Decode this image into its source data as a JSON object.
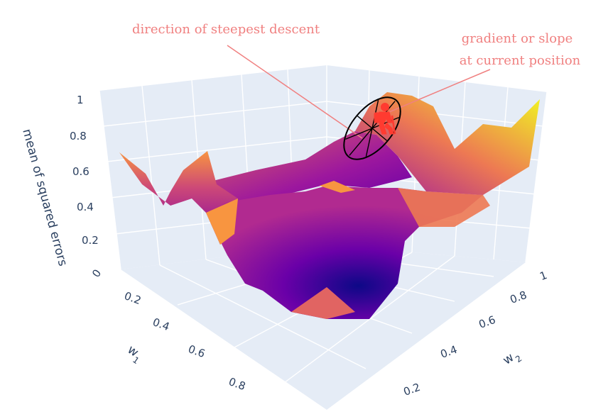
{
  "chart_data": {
    "type": "surface",
    "zaxis": {
      "title": "mean of squared errors",
      "ticks": [
        "0",
        "0.2",
        "0.4",
        "0.6",
        "0.8",
        "1"
      ],
      "range": [
        0,
        1
      ]
    },
    "xaxis": {
      "title": "w",
      "subscript": "1",
      "ticks": [
        "0.2",
        "0.4",
        "0.6",
        "0.8"
      ]
    },
    "yaxis": {
      "title": "w",
      "subscript": "2",
      "ticks": [
        "0.2",
        "0.4",
        "0.6",
        "0.8",
        "1"
      ]
    },
    "colorscale": [
      "#0d0887",
      "#7e03a8",
      "#cc4778",
      "#f89540",
      "#f0f921"
    ],
    "annotations": [
      {
        "text": "direction of steepest descent"
      },
      {
        "text": "gradient or slope"
      },
      {
        "text": "at current position"
      }
    ],
    "hiker_color": "#ff3b30"
  }
}
